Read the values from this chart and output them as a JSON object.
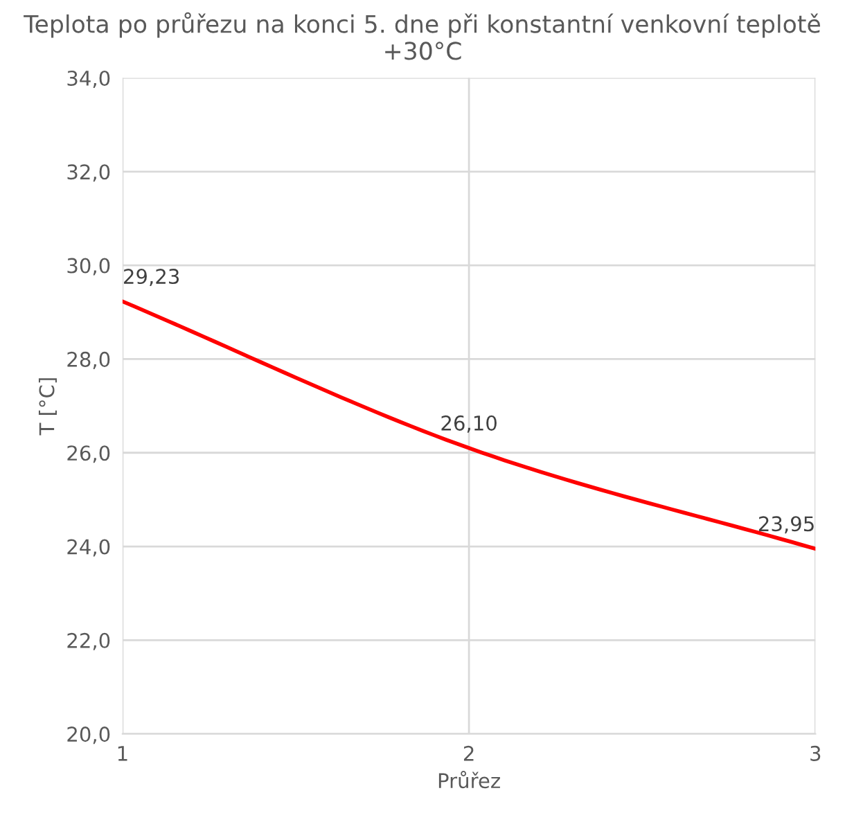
{
  "chart_data": {
    "type": "line",
    "title": "Teplota po průřezu na konci 5. dne při konstantní venkovní teplotě +30°C",
    "xlabel": "Průřez",
    "ylabel": "T [°C]",
    "x": [
      1,
      2,
      3
    ],
    "series": [
      {
        "color": "#ff0000",
        "values": [
          29.23,
          26.1,
          23.95
        ],
        "value_labels": [
          "29,23",
          "26,10",
          "23,95"
        ]
      }
    ],
    "xlim": [
      1,
      3
    ],
    "xticks": [
      1,
      2,
      3
    ],
    "ylim": [
      20,
      34
    ],
    "yticks": [
      {
        "value": 20,
        "label": "20,0"
      },
      {
        "value": 22,
        "label": "22,0"
      },
      {
        "value": 24,
        "label": "24,0"
      },
      {
        "value": 26,
        "label": "26,0"
      },
      {
        "value": 28,
        "label": "28,0"
      },
      {
        "value": 30,
        "label": "30,0"
      },
      {
        "value": 32,
        "label": "32,0"
      },
      {
        "value": 34,
        "label": "34,0"
      }
    ],
    "grid": true,
    "marker": "none",
    "line_style": "solid"
  }
}
